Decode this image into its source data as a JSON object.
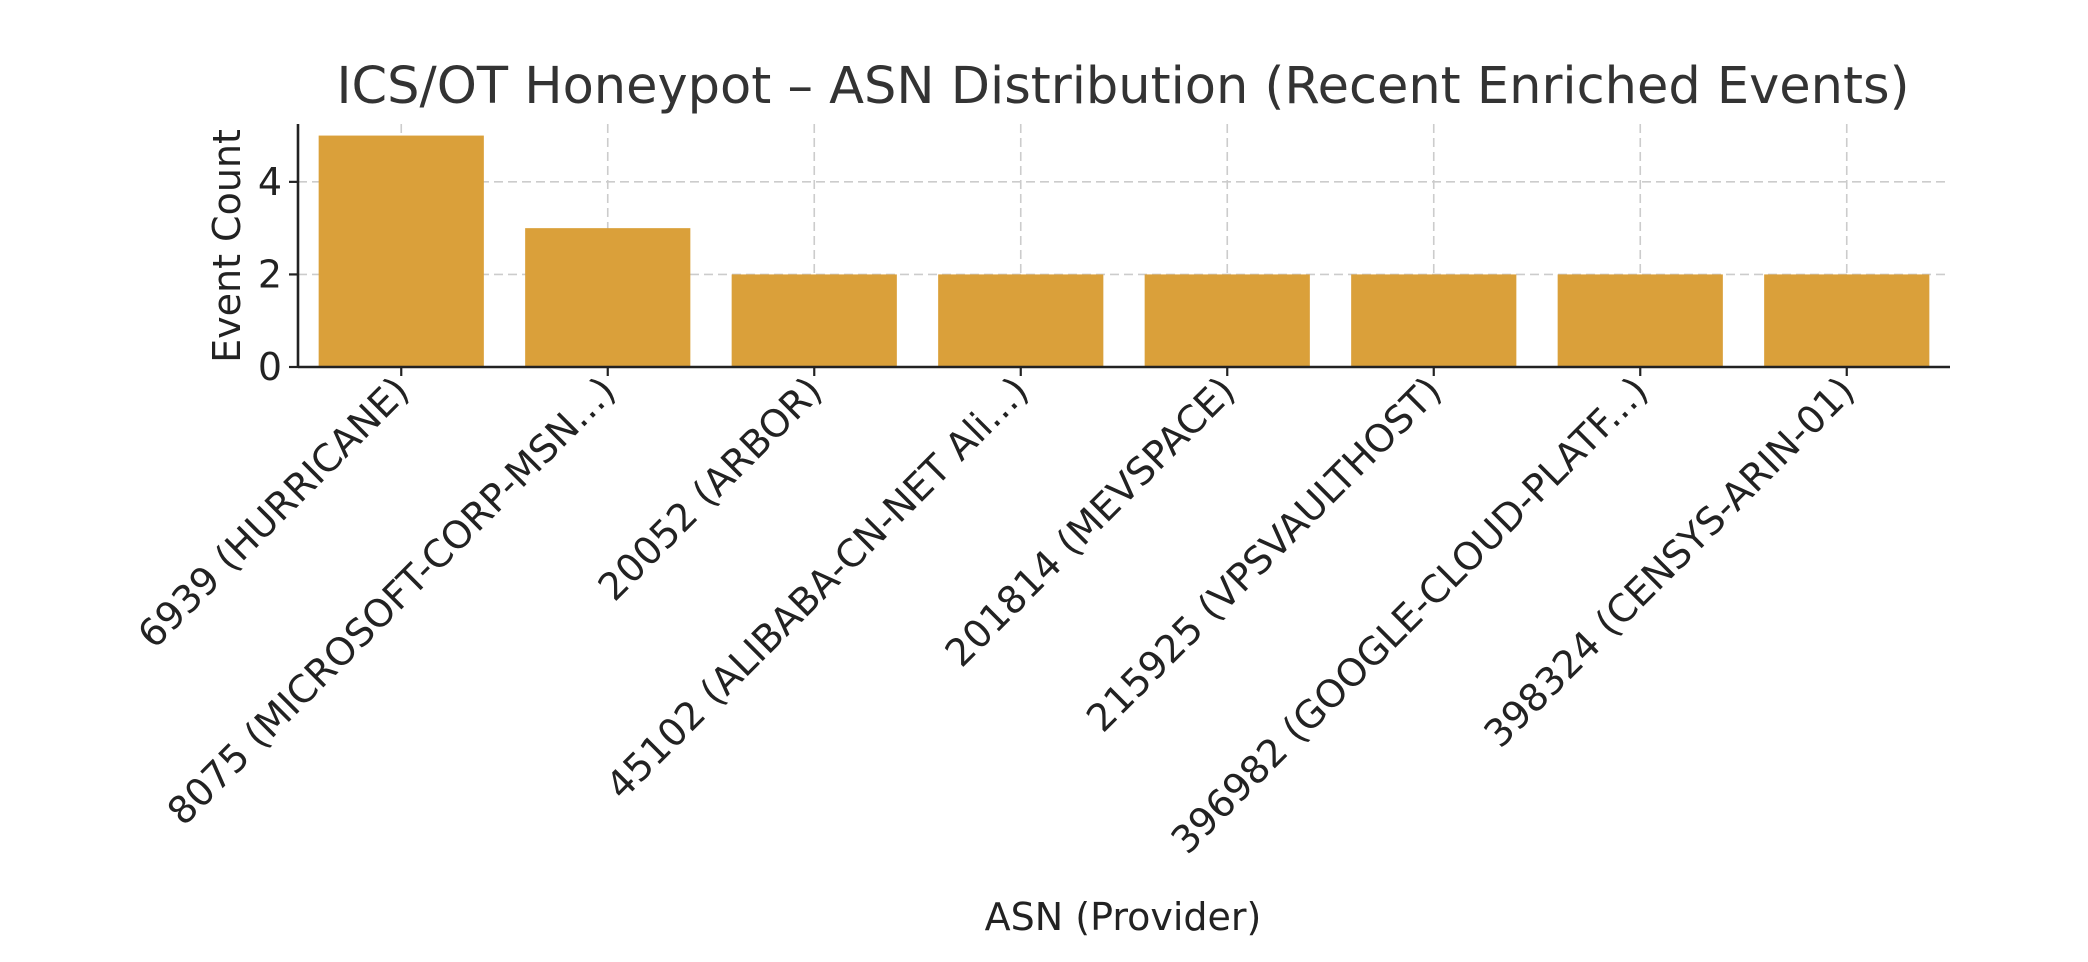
{
  "chart_data": {
    "type": "bar",
    "title": "ICS/OT Honeypot – ASN Distribution (Recent Enriched Events)",
    "xlabel": "ASN (Provider)",
    "ylabel": "Event Count",
    "categories": [
      "6939 (HURRICANE)",
      "8075 (MICROSOFT-CORP-MSN...)",
      "20052 (ARBOR)",
      "45102 (ALIBABA-CN-NET Ali...)",
      "201814 (MEVSPACE)",
      "215925 (VPSVAULTHOST)",
      "396982 (GOOGLE-CLOUD-PLATF...)",
      "398324 (CENSYS-ARIN-01)"
    ],
    "values": [
      5,
      3,
      2,
      2,
      2,
      2,
      2,
      2
    ],
    "yticks": [
      0,
      2,
      4
    ],
    "ylim": [
      0,
      5.25
    ],
    "grid": true,
    "bar_color": "#DAA03A"
  }
}
